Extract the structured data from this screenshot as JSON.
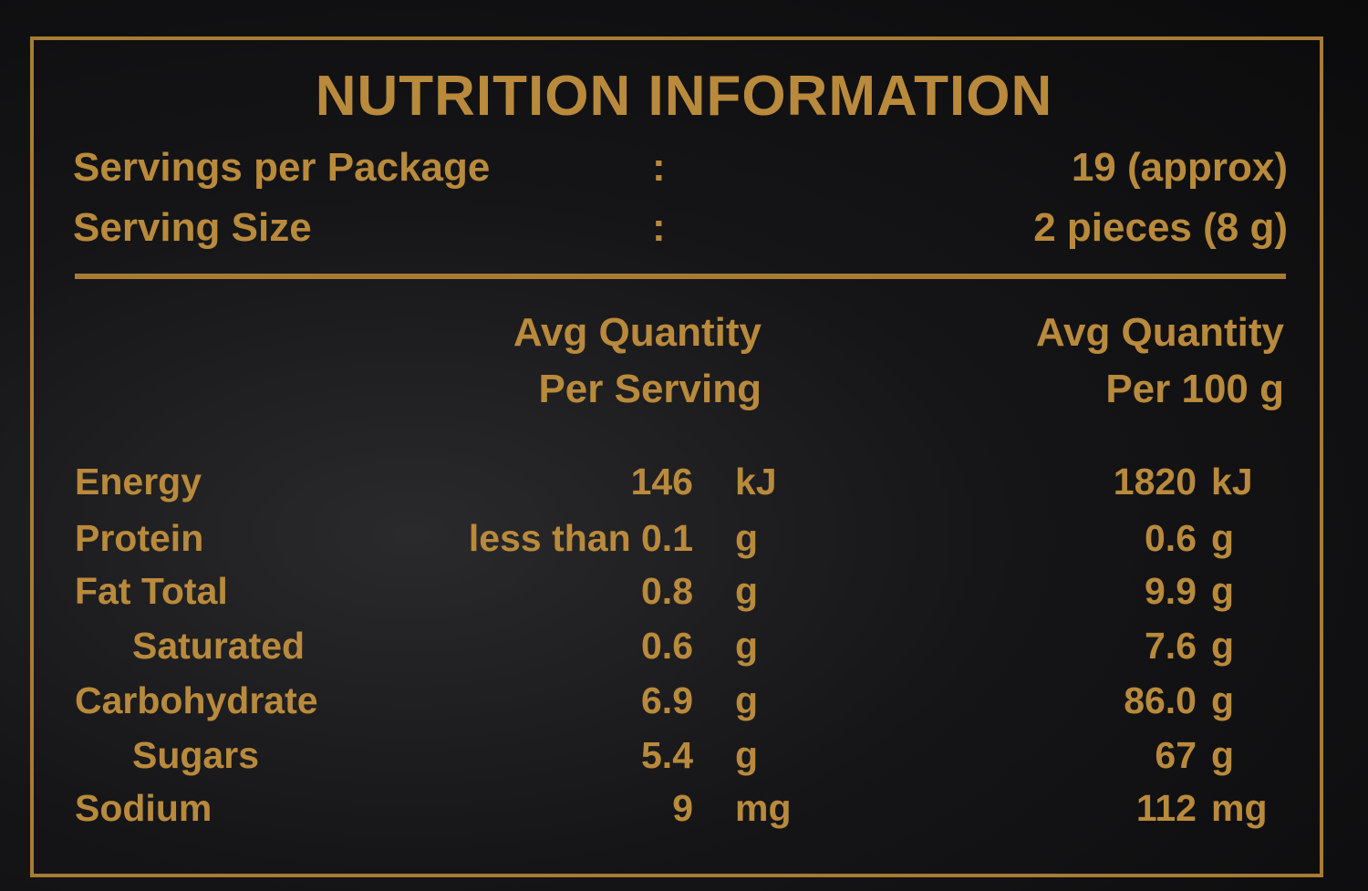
{
  "title": "NUTRITION INFORMATION",
  "servings": [
    {
      "label": "Servings per Package",
      "separator": ":",
      "value": "19 (approx)"
    },
    {
      "label": "Serving Size",
      "separator": ":",
      "value": "2 pieces (8 g)"
    }
  ],
  "headers": {
    "per_serving": [
      "Avg Quantity",
      "Per Serving"
    ],
    "per_100g": [
      "Avg Quantity",
      "Per 100 g"
    ]
  },
  "rows": [
    [
      "Energy",
      "146",
      "kJ",
      "1820",
      "kJ"
    ],
    [
      "Protein",
      "less than 0.1",
      "g",
      "0.6",
      "g"
    ],
    [
      "Fat Total",
      "0.8",
      "g",
      "9.9",
      "g"
    ],
    [
      "Saturated",
      "0.6",
      "g",
      "7.6",
      "g"
    ],
    [
      "Carbohydrate",
      "6.9",
      "g",
      "86.0",
      "g"
    ],
    [
      "Sugars",
      "5.4",
      "g",
      "67",
      "g"
    ],
    [
      "Sodium",
      "9",
      "mg",
      "112",
      "mg"
    ]
  ]
}
